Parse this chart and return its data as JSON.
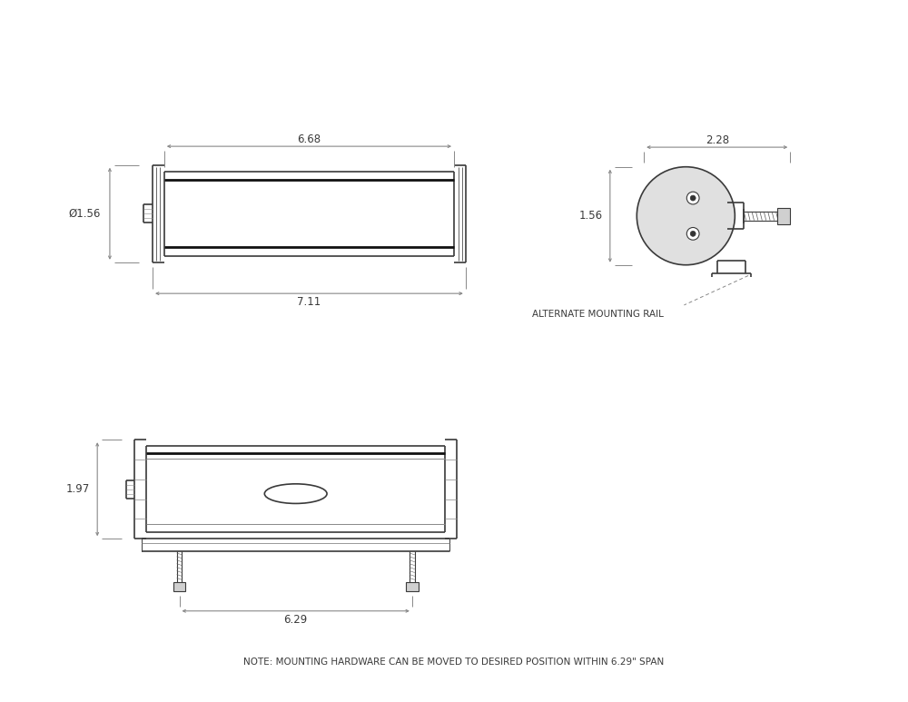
{
  "bg_color": "#ffffff",
  "line_color": "#3a3a3a",
  "dim_color": "#888888",
  "text_color": "#3a3a3a",
  "note_text": "NOTE: MOUNTING HARDWARE CAN BE MOVED TO DESIRED POSITION WITHIN 6.29\" SPAN",
  "label_668": "6.68",
  "label_711": "7.11",
  "label_156_top": "Ø1.56",
  "label_228": "2.28",
  "label_156_side": "1.56",
  "label_alt": "ALTERNATE MOUNTING RAIL",
  "label_197": "1.97",
  "label_629": "6.29",
  "font_size_dim": 8.5,
  "font_size_note": 7.5,
  "font_size_label": 7.5
}
